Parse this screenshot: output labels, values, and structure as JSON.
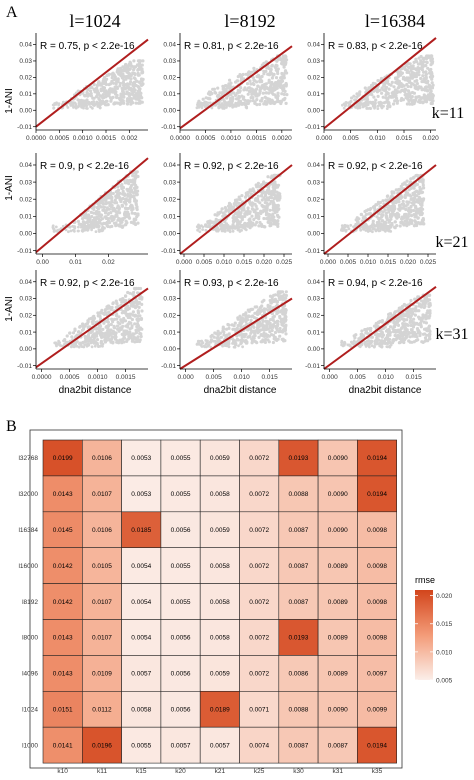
{
  "panel_a_label": "A",
  "panel_b_label": "B",
  "column_labels": [
    "l=1024",
    "l=8192",
    "l=16384"
  ],
  "row_labels": [
    "k=11",
    "k=21",
    "k=31"
  ],
  "colors": {
    "points": "#d4d4d4",
    "line": "#b01e1e",
    "heat_low": "#fbeee9",
    "heat_high": "#d2451c"
  },
  "chart_data": [
    {
      "type": "scatter",
      "ylabel": "1-ANI",
      "xlabel": "dna2bit distance",
      "y_ticks": [
        "0.04",
        "0.03",
        "0.02",
        "0.01",
        "0.00",
        "-0.01"
      ],
      "grid": false,
      "panels": [
        {
          "row": 0,
          "col": 0,
          "stat_text": "R = 0.75, p < 2.2e-16",
          "x_ticks": [
            "0.0000",
            "0.0005",
            "0.0010",
            "0.0015",
            "0.002"
          ],
          "xlim": [
            0,
            0.0024
          ],
          "ylim": [
            -0.012,
            0.047
          ],
          "line": [
            [
              0,
              -0.01
            ],
            [
              0.0024,
              0.043
            ]
          ],
          "cloud_x": [
            0.0006,
            0.0023
          ],
          "cloud_y": [
            0.0,
            0.03
          ]
        },
        {
          "row": 0,
          "col": 1,
          "stat_text": "R = 0.81, p < 2.2e-16",
          "x_ticks": [
            "0.0000",
            "0.0005",
            "0.0010",
            "0.0015",
            "0.0020"
          ],
          "xlim": [
            0,
            0.0022
          ],
          "ylim": [
            -0.012,
            0.047
          ],
          "line": [
            [
              0,
              -0.011
            ],
            [
              0.0022,
              0.039
            ]
          ],
          "cloud_x": [
            0.0003,
            0.0021
          ],
          "cloud_y": [
            0.0,
            0.033
          ]
        },
        {
          "row": 0,
          "col": 2,
          "stat_text": "R = 0.83, p < 2.2e-16",
          "x_ticks": [
            "0.000",
            "0.005",
            "0.010",
            "0.015",
            "0.020"
          ],
          "xlim": [
            0,
            0.021
          ],
          "ylim": [
            -0.012,
            0.047
          ],
          "line": [
            [
              0,
              -0.011
            ],
            [
              0.021,
              0.044
            ]
          ],
          "cloud_x": [
            0.004,
            0.0205
          ],
          "cloud_y": [
            0.0,
            0.033
          ]
        },
        {
          "row": 1,
          "col": 0,
          "stat_text": "R = 0.9, p < 2.2e-16",
          "x_ticks": [
            "0.00",
            "0.01",
            "0.02"
          ],
          "xlim": [
            -0.002,
            0.032
          ],
          "ylim": [
            -0.012,
            0.047
          ],
          "line": [
            [
              -0.002,
              -0.011
            ],
            [
              0.032,
              0.044
            ]
          ],
          "cloud_x": [
            0.009,
            0.029
          ],
          "cloud_y": [
            0.0,
            0.036
          ]
        },
        {
          "row": 1,
          "col": 1,
          "stat_text": "R = 0.92, p < 2.2e-16",
          "x_ticks": [
            "0.000",
            "0.005",
            "0.010",
            "0.015",
            "0.020",
            "0.025"
          ],
          "xlim": [
            -0.001,
            0.027
          ],
          "ylim": [
            -0.012,
            0.047
          ],
          "line": [
            [
              -0.001,
              -0.012
            ],
            [
              0.027,
              0.04
            ]
          ],
          "cloud_x": [
            0.005,
            0.024
          ],
          "cloud_y": [
            0.0,
            0.034
          ]
        },
        {
          "row": 1,
          "col": 2,
          "stat_text": "R = 0.92, p < 2.2e-16",
          "x_ticks": [
            "0.000",
            "0.005",
            "0.010",
            "0.015",
            "0.020",
            "0.025"
          ],
          "xlim": [
            -0.001,
            0.027
          ],
          "ylim": [
            -0.012,
            0.047
          ],
          "line": [
            [
              -0.001,
              -0.012
            ],
            [
              0.027,
              0.04
            ]
          ],
          "cloud_x": [
            0.006,
            0.024
          ],
          "cloud_y": [
            0.0,
            0.034
          ]
        },
        {
          "row": 2,
          "col": 0,
          "stat_text": "R = 0.92, p < 2.2e-16",
          "x_ticks": [
            "0.0000",
            "0.0005",
            "0.0010",
            "0.0015"
          ],
          "xlim": [
            -0.0001,
            0.0019
          ],
          "ylim": [
            -0.012,
            0.047
          ],
          "line": [
            [
              -0.0001,
              -0.011
            ],
            [
              0.0019,
              0.036
            ]
          ],
          "cloud_x": [
            0.0004,
            0.0018
          ],
          "cloud_y": [
            0.0,
            0.036
          ]
        },
        {
          "row": 2,
          "col": 1,
          "stat_text": "R = 0.93, p < 2.2e-16",
          "x_ticks": [
            "0.000",
            "0.005",
            "0.010",
            "0.015"
          ],
          "xlim": [
            -0.001,
            0.019
          ],
          "ylim": [
            -0.012,
            0.047
          ],
          "line": [
            [
              -0.001,
              -0.012
            ],
            [
              0.019,
              0.03
            ]
          ],
          "cloud_x": [
            0.004,
            0.018
          ],
          "cloud_y": [
            0.0,
            0.034
          ]
        },
        {
          "row": 2,
          "col": 2,
          "stat_text": "R = 0.94, p < 2.2e-16",
          "x_ticks": [
            "0.000",
            "0.005",
            "0.010",
            "0.015"
          ],
          "xlim": [
            -0.001,
            0.019
          ],
          "ylim": [
            -0.012,
            0.047
          ],
          "line": [
            [
              -0.001,
              -0.012
            ],
            [
              0.019,
              0.037
            ]
          ],
          "cloud_x": [
            0.004,
            0.018
          ],
          "cloud_y": [
            0.0,
            0.032
          ]
        }
      ]
    },
    {
      "type": "heatmap",
      "x_categories": [
        "k10",
        "k11",
        "k15",
        "k20",
        "k21",
        "k25",
        "k30",
        "k31",
        "k35"
      ],
      "y_categories": [
        "l32768",
        "l32000",
        "l16384",
        "l16000",
        "l8192",
        "l8000",
        "l4096",
        "l1024",
        "l1000"
      ],
      "values": [
        [
          0.0199,
          0.0106,
          0.0053,
          0.0055,
          0.0059,
          0.0072,
          0.0193,
          0.009,
          0.0194
        ],
        [
          0.0143,
          0.0107,
          0.0053,
          0.0055,
          0.0058,
          0.0072,
          0.0088,
          0.009,
          0.0194
        ],
        [
          0.0145,
          0.0106,
          0.0185,
          0.0056,
          0.0059,
          0.0072,
          0.0087,
          0.009,
          0.0098
        ],
        [
          0.0142,
          0.0105,
          0.0054,
          0.0055,
          0.0058,
          0.0072,
          0.0087,
          0.0089,
          0.0098
        ],
        [
          0.0142,
          0.0107,
          0.0054,
          0.0055,
          0.0058,
          0.0072,
          0.0087,
          0.0089,
          0.0098
        ],
        [
          0.0143,
          0.0107,
          0.0054,
          0.0056,
          0.0058,
          0.0072,
          0.0193,
          0.0089,
          0.0098
        ],
        [
          0.0143,
          0.0109,
          0.0057,
          0.0056,
          0.0059,
          0.0072,
          0.0086,
          0.0089,
          0.0097
        ],
        [
          0.0151,
          0.0112,
          0.0058,
          0.0056,
          0.0189,
          0.0071,
          0.0088,
          0.009,
          0.0099
        ],
        [
          0.0141,
          0.0196,
          0.0055,
          0.0057,
          0.0057,
          0.0074,
          0.0087,
          0.0087,
          0.0194
        ]
      ],
      "cell_labels": [
        [
          "0.0199",
          "0.0106",
          "0.0053",
          "0.0055",
          "0.0059",
          "0.0072",
          "0.0193",
          "0.0090",
          "0.0194"
        ],
        [
          "0.0143",
          "0.0107",
          "0.0053",
          "0.0055",
          "0.0058",
          "0.0072",
          "0.0088",
          "0.0090",
          "0.0194"
        ],
        [
          "0.0145",
          "0.0106",
          "0.0185",
          "0.0056",
          "0.0059",
          "0.0072",
          "0.0087",
          "0.0090",
          "0.0098"
        ],
        [
          "0.0142",
          "0.0105",
          "0.0054",
          "0.0055",
          "0.0058",
          "0.0072",
          "0.0087",
          "0.0089",
          "0.0098"
        ],
        [
          "0.0142",
          "0.0107",
          "0.0054",
          "0.0055",
          "0.0058",
          "0.0072",
          "0.0087",
          "0.0089",
          "0.0098"
        ],
        [
          "0.0143",
          "0.0107",
          "0.0054",
          "0.0056",
          "0.0058",
          "0.0072",
          "0.0193",
          "0.0089",
          "0.0098"
        ],
        [
          "0.0143",
          "0.0109",
          "0.0057",
          "0.0056",
          "0.0059",
          "0.0072",
          "0.0086",
          "0.0089",
          "0.0097"
        ],
        [
          "0.0151",
          "0.0112",
          "0.0058",
          "0.0056",
          "0.0189",
          "0.0071",
          "0.0088",
          "0.0090",
          "0.0099"
        ],
        [
          "0.0141",
          "0.0196",
          "0.0055",
          "0.0057",
          "0.0057",
          "0.0074",
          "0.0087",
          "0.0087",
          "0.0194"
        ]
      ],
      "legend_title": "rmse",
      "legend_ticks": [
        "0.020",
        "0.015",
        "0.010",
        "0.005"
      ],
      "legend_range": [
        0.005,
        0.021
      ],
      "legend_placement": "right"
    }
  ]
}
